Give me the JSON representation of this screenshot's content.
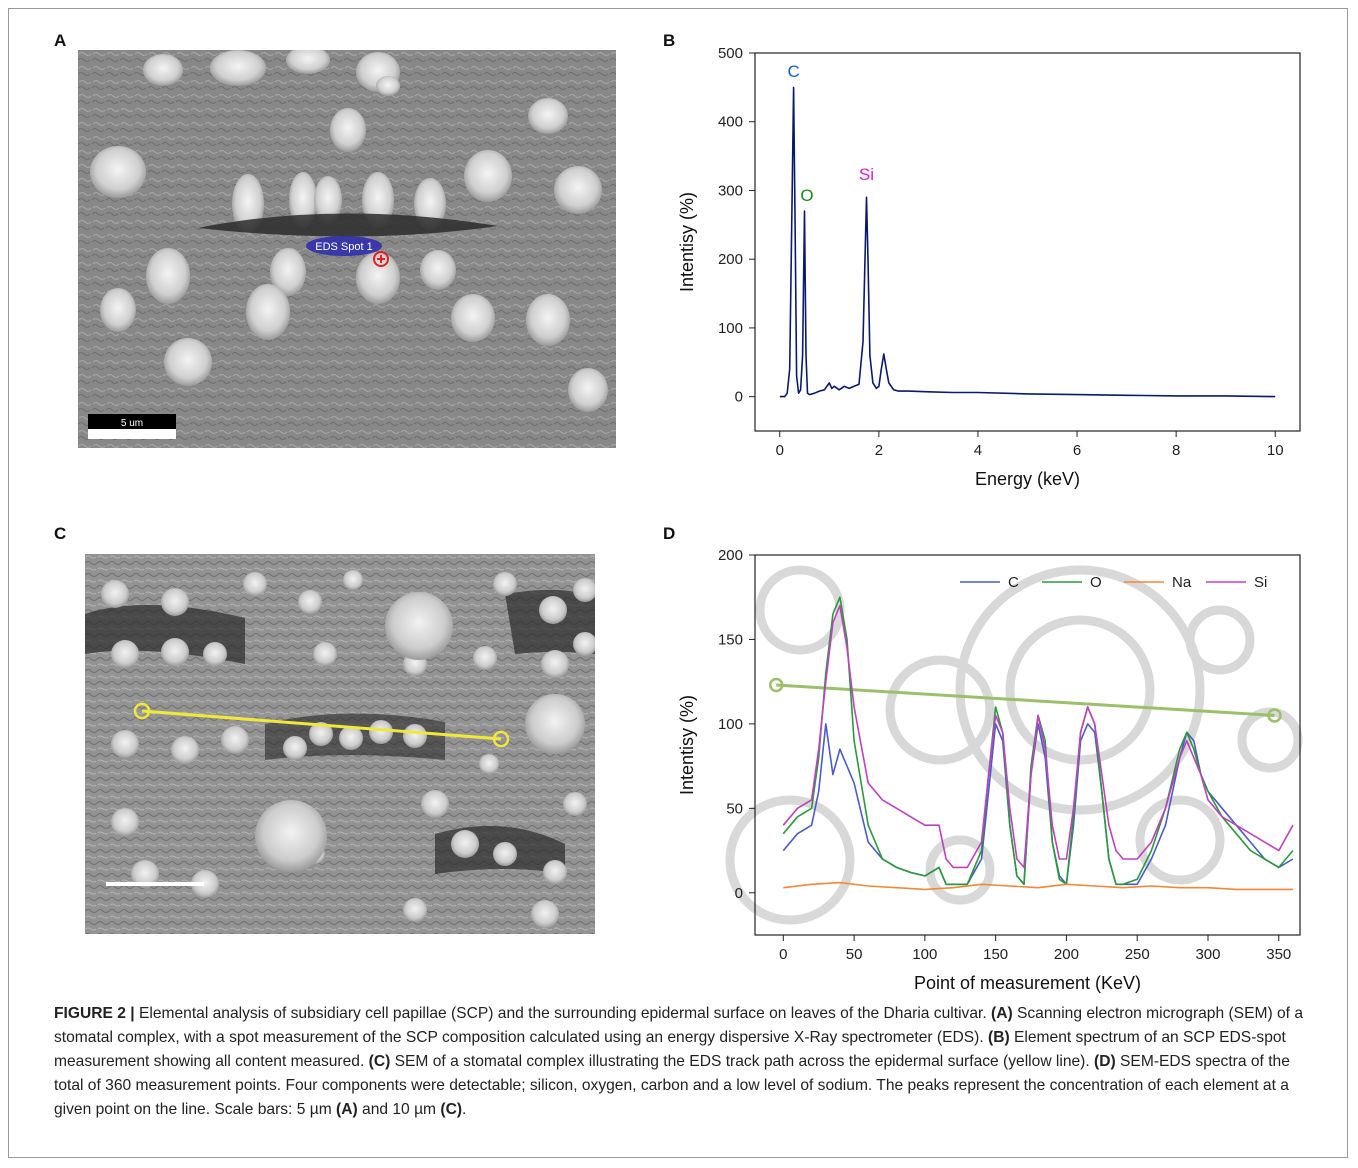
{
  "panels": {
    "A": {
      "letter": "A",
      "spot_label": "EDS Spot 1",
      "scale_label": "5 um"
    },
    "B": {
      "letter": "B"
    },
    "C": {
      "letter": "C"
    },
    "D": {
      "letter": "D"
    }
  },
  "caption": {
    "figure_label": "FIGURE 2 |",
    "intro": " Elemental analysis of subsidiary cell papillae (SCP) and the surrounding epidermal surface on leaves of the Dharia cultivar. ",
    "refA": "(A)",
    "textA": " Scanning electron micrograph (SEM) of a stomatal complex, with a spot measurement of the SCP composition calculated using an energy dispersive X-Ray spectrometer (EDS). ",
    "refB": "(B)",
    "textB": " Element spectrum of an SCP EDS-spot measurement showing all content measured. ",
    "refC": "(C)",
    "textC": " SEM of a stomatal complex illustrating the EDS track path across the epidermal surface (yellow line). ",
    "refD": "(D)",
    "textD": " SEM-EDS spectra of the total of 360 measurement points. Four components were detectable; silicon, oxygen, carbon and a low level of sodium. The peaks represent the concentration of each element at a given point on the line. Scale bars: 5 µm ",
    "refA2": "(A)",
    "and": " and 10 µm ",
    "refC2": "(C)",
    "end": "."
  },
  "chart_data": [
    {
      "panel": "B",
      "type": "line",
      "xlabel": "Energy (keV)",
      "ylabel": "Intentisy (%)",
      "xlim": [
        -0.5,
        10.5
      ],
      "ylim": [
        -50,
        500
      ],
      "xticks": [
        0,
        2,
        4,
        6,
        8,
        10
      ],
      "yticks": [
        0,
        100,
        200,
        300,
        400,
        500
      ],
      "grid": false,
      "color": "#0a1a6e",
      "series": [
        {
          "x": [
            0,
            0.1,
            0.15,
            0.2,
            0.25,
            0.28,
            0.31,
            0.34,
            0.38,
            0.42,
            0.46,
            0.5,
            0.53,
            0.56,
            0.6,
            0.7,
            0.8,
            0.9,
            1.0,
            1.05,
            1.1,
            1.2,
            1.3,
            1.4,
            1.5,
            1.6,
            1.68,
            1.72,
            1.75,
            1.78,
            1.82,
            1.88,
            1.95,
            2.0,
            2.05,
            2.1,
            2.15,
            2.2,
            2.3,
            2.4,
            2.6,
            3.0,
            3.5,
            4.0,
            5.0,
            6.0,
            7.0,
            8.0,
            9.0,
            10.0
          ],
          "y": [
            0,
            0,
            5,
            40,
            300,
            450,
            250,
            30,
            5,
            10,
            60,
            270,
            60,
            5,
            3,
            5,
            8,
            10,
            20,
            12,
            15,
            10,
            15,
            12,
            15,
            18,
            80,
            200,
            290,
            200,
            60,
            20,
            12,
            15,
            40,
            62,
            40,
            20,
            10,
            8,
            8,
            7,
            6,
            6,
            4,
            3,
            2,
            1,
            1,
            0
          ]
        }
      ],
      "annotations": [
        {
          "label": "C",
          "x": 0.28,
          "y": 465,
          "color": "#1560c8"
        },
        {
          "label": "O",
          "x": 0.55,
          "y": 285,
          "color": "#1a8a1a"
        },
        {
          "label": "Si",
          "x": 1.75,
          "y": 315,
          "color": "#d020d0"
        }
      ]
    },
    {
      "panel": "D",
      "type": "line",
      "xlabel": "Point of measurement (KeV)",
      "ylabel": "Intentisy (%)",
      "xlim": [
        -20,
        365
      ],
      "ylim": [
        -25,
        200
      ],
      "xticks": [
        0,
        50,
        100,
        150,
        200,
        250,
        300,
        350
      ],
      "yticks": [
        0,
        50,
        100,
        150,
        200
      ],
      "grid": false,
      "legend": "top-right",
      "track_endpoints": [
        [
          -5,
          123
        ],
        [
          347,
          105
        ]
      ],
      "series": [
        {
          "name": "C",
          "color": "#4a5cc8",
          "x": [
            0,
            10,
            20,
            25,
            30,
            35,
            40,
            45,
            50,
            60,
            70,
            80,
            90,
            100,
            110,
            115,
            120,
            130,
            140,
            145,
            150,
            155,
            160,
            165,
            170,
            175,
            180,
            185,
            190,
            195,
            200,
            205,
            210,
            215,
            220,
            225,
            230,
            235,
            240,
            250,
            260,
            270,
            280,
            285,
            290,
            295,
            300,
            310,
            320,
            330,
            340,
            350,
            360
          ],
          "y": [
            25,
            35,
            40,
            60,
            100,
            70,
            85,
            75,
            65,
            30,
            20,
            15,
            12,
            10,
            15,
            5,
            5,
            5,
            20,
            60,
            100,
            90,
            40,
            10,
            5,
            70,
            100,
            80,
            30,
            10,
            5,
            40,
            90,
            100,
            95,
            60,
            20,
            5,
            5,
            5,
            20,
            40,
            80,
            95,
            90,
            70,
            60,
            50,
            40,
            30,
            20,
            15,
            20
          ]
        },
        {
          "name": "O",
          "color": "#2a9a3a",
          "x": [
            0,
            10,
            20,
            25,
            30,
            35,
            40,
            45,
            50,
            60,
            70,
            80,
            90,
            100,
            110,
            115,
            120,
            130,
            140,
            145,
            150,
            155,
            160,
            165,
            170,
            175,
            180,
            185,
            190,
            195,
            200,
            205,
            210,
            215,
            220,
            225,
            230,
            235,
            240,
            250,
            260,
            270,
            280,
            285,
            290,
            295,
            300,
            310,
            320,
            330,
            340,
            350,
            360
          ],
          "y": [
            35,
            45,
            50,
            80,
            130,
            165,
            175,
            150,
            90,
            40,
            20,
            15,
            12,
            10,
            15,
            5,
            5,
            5,
            25,
            70,
            110,
            95,
            40,
            10,
            5,
            75,
            105,
            90,
            30,
            8,
            5,
            45,
            95,
            110,
            100,
            60,
            20,
            5,
            5,
            8,
            25,
            50,
            85,
            95,
            85,
            70,
            60,
            45,
            35,
            25,
            20,
            15,
            25
          ]
        },
        {
          "name": "Na",
          "color": "#f0883a",
          "x": [
            0,
            20,
            40,
            60,
            80,
            100,
            120,
            140,
            160,
            180,
            200,
            220,
            240,
            260,
            280,
            300,
            320,
            340,
            360
          ],
          "y": [
            3,
            5,
            6,
            4,
            3,
            2,
            3,
            5,
            4,
            3,
            5,
            4,
            3,
            4,
            3,
            3,
            2,
            2,
            2
          ]
        },
        {
          "name": "Si",
          "color": "#c040c0",
          "x": [
            0,
            10,
            20,
            25,
            30,
            35,
            40,
            45,
            50,
            60,
            70,
            80,
            90,
            100,
            110,
            115,
            120,
            130,
            140,
            145,
            150,
            155,
            160,
            165,
            170,
            175,
            180,
            185,
            190,
            195,
            200,
            205,
            210,
            215,
            220,
            225,
            230,
            235,
            240,
            250,
            260,
            270,
            280,
            285,
            290,
            295,
            300,
            310,
            320,
            330,
            340,
            350,
            360
          ],
          "y": [
            40,
            50,
            55,
            85,
            125,
            160,
            170,
            145,
            110,
            65,
            55,
            50,
            45,
            40,
            40,
            20,
            15,
            15,
            30,
            70,
            105,
            95,
            50,
            20,
            15,
            70,
            105,
            85,
            40,
            20,
            20,
            50,
            95,
            110,
            100,
            70,
            40,
            25,
            20,
            20,
            30,
            50,
            80,
            90,
            80,
            70,
            55,
            45,
            40,
            35,
            30,
            25,
            40
          ]
        }
      ]
    }
  ]
}
